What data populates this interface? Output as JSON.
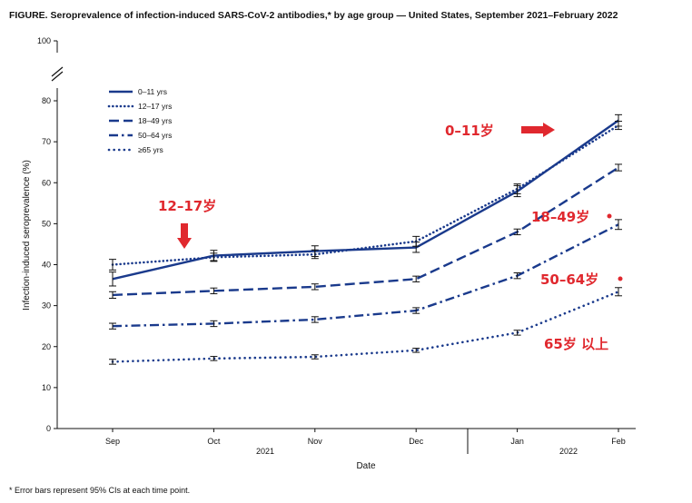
{
  "figure_title": "FIGURE. Seroprevalence of infection-induced SARS-CoV-2 antibodies,* by age group — United States, September 2021–February 2022",
  "footnote": "* Error bars represent 95% CIs at each time point.",
  "colors": {
    "series": "#1a3a8c",
    "annotation": "#e0282e",
    "axis": "#111111"
  },
  "chart_data": {
    "type": "line",
    "title": "Seroprevalence of infection-induced SARS-CoV-2 antibodies, by age group — United States, September 2021–February 2022",
    "xlabel": "Date",
    "ylabel": "Infection-induced seroprevalence (%)",
    "categories": [
      "Sep",
      "Oct",
      "Nov",
      "Dec",
      "Jan",
      "Feb"
    ],
    "year_labels": [
      "2021",
      "2022"
    ],
    "yticks": [
      0,
      10,
      20,
      30,
      40,
      50,
      60,
      70,
      80,
      100
    ],
    "ylim": [
      0,
      100
    ],
    "axis_break": "between 80 and 100",
    "legend_position": "upper-left",
    "series": [
      {
        "name": "0–11 yrs",
        "style": "solid",
        "values": [
          36.5,
          42.2,
          43.3,
          44.2,
          57.9,
          75.2
        ],
        "ci_low": [
          34.8,
          41.0,
          42.0,
          43.0,
          56.6,
          73.8
        ],
        "ci_high": [
          38.2,
          43.5,
          44.6,
          45.5,
          59.3,
          76.6
        ]
      },
      {
        "name": "12–17 yrs",
        "style": "dotted",
        "values": [
          40.0,
          41.8,
          42.5,
          45.7,
          58.5,
          74.0
        ],
        "ci_low": [
          38.7,
          40.8,
          41.5,
          44.5,
          57.3,
          73.0
        ],
        "ci_high": [
          41.3,
          42.8,
          43.6,
          46.9,
          59.7,
          75.0
        ]
      },
      {
        "name": "18–49 yrs",
        "style": "dashed",
        "values": [
          32.6,
          33.6,
          34.6,
          36.5,
          48.0,
          63.7
        ],
        "ci_low": [
          31.8,
          32.9,
          33.9,
          35.8,
          47.3,
          62.9
        ],
        "ci_high": [
          33.4,
          34.3,
          35.3,
          37.2,
          48.7,
          64.5
        ]
      },
      {
        "name": "50–64 yrs",
        "style": "dashdot",
        "values": [
          25.0,
          25.6,
          26.6,
          28.8,
          37.3,
          49.8
        ],
        "ci_low": [
          24.3,
          24.9,
          25.9,
          28.1,
          36.6,
          48.6
        ],
        "ci_high": [
          25.7,
          26.3,
          27.3,
          29.5,
          38.0,
          51.0
        ]
      },
      {
        "name": "≥65 yrs",
        "style": "finedot",
        "values": [
          16.3,
          17.1,
          17.5,
          19.1,
          23.4,
          33.4
        ],
        "ci_low": [
          15.7,
          16.6,
          17.0,
          18.6,
          22.8,
          32.4
        ],
        "ci_high": [
          16.9,
          17.6,
          18.0,
          19.6,
          24.0,
          34.4
        ]
      }
    ],
    "annotations": [
      {
        "text": "0–11岁",
        "x": "Jan",
        "y": 71.5
      },
      {
        "text": "12–17岁",
        "x": "Sep",
        "y": 55.5
      },
      {
        "text": "18–49岁",
        "x": "Jan",
        "y": 51.0
      },
      {
        "text": "50–64岁",
        "x": "Jan",
        "y": 38.0
      },
      {
        "text": "65岁 以上",
        "x": "Jan",
        "y": 23.5
      }
    ]
  }
}
